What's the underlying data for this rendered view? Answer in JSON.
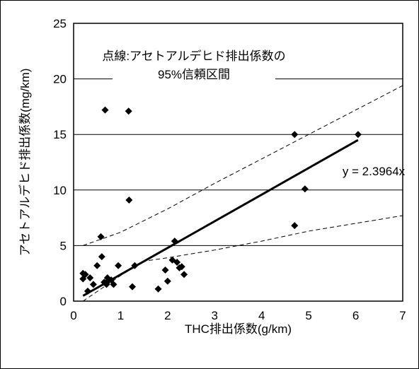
{
  "chart_data": {
    "type": "scatter",
    "xlabel": "THC排出係数(g/km)",
    "ylabel": "アセトアルデヒド排出係数(mg/km)",
    "xlim": [
      0,
      7
    ],
    "ylim": [
      0,
      25
    ],
    "xticks": [
      "0",
      "1",
      "2",
      "3",
      "4",
      "5",
      "6",
      "7"
    ],
    "yticks": [
      "0",
      "5",
      "10",
      "15",
      "20",
      "25"
    ],
    "grid": "horizontal",
    "legend": "none",
    "annotation_lines": [
      "点線:アセトアルデヒド排出係数の",
      "95%信頼区間"
    ],
    "regression_label": "y = 2.3964x",
    "regression": {
      "slope": 2.3964,
      "x": [
        0.2,
        6.05
      ]
    },
    "confidence_upper": {
      "x": [
        0.2,
        1.0,
        2.0,
        3.0,
        4.0,
        5.0,
        6.0,
        7.0
      ],
      "y": [
        5.0,
        6.2,
        8.3,
        10.6,
        12.8,
        15.0,
        17.2,
        19.4
      ]
    },
    "confidence_lower": {
      "x": [
        0.2,
        1.0,
        1.5,
        2.0,
        3.0,
        4.0,
        5.0,
        6.0,
        7.0
      ],
      "y": [
        0.0,
        2.3,
        3.6,
        3.9,
        4.6,
        5.4,
        6.3,
        7.0,
        7.7
      ]
    },
    "points": {
      "x": [
        0.2,
        0.2,
        0.25,
        0.3,
        0.35,
        0.42,
        0.5,
        0.58,
        0.6,
        0.65,
        0.7,
        0.72,
        0.75,
        0.8,
        0.85,
        0.95,
        0.67,
        1.17,
        1.18,
        1.25,
        1.3,
        1.8,
        1.95,
        2.0,
        2.1,
        2.15,
        2.2,
        2.25,
        2.3,
        2.35,
        4.7,
        4.7,
        4.92,
        6.05
      ],
      "y": [
        2.5,
        2.0,
        2.4,
        0.9,
        2.1,
        1.5,
        3.2,
        5.8,
        4.0,
        1.7,
        1.5,
        2.1,
        1.9,
        1.9,
        1.5,
        3.2,
        17.2,
        17.1,
        9.1,
        1.3,
        3.2,
        1.1,
        2.8,
        1.8,
        3.7,
        5.4,
        3.5,
        3.0,
        3.1,
        2.4,
        15.0,
        6.8,
        10.1,
        15.0
      ]
    }
  }
}
